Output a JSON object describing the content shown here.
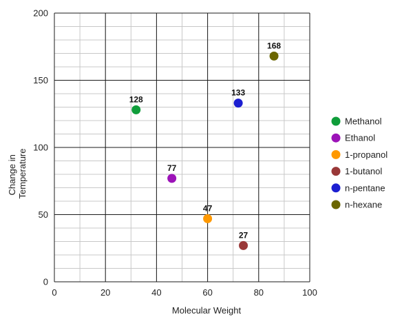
{
  "chart_data": {
    "type": "scatter",
    "title": "",
    "xlabel": "Molecular Weight",
    "ylabel": [
      "Change in",
      "Temperature"
    ],
    "xlim": [
      0,
      100
    ],
    "ylim": [
      0,
      200
    ],
    "x_ticks": [
      "0",
      "20",
      "40",
      "60",
      "80",
      "100"
    ],
    "y_ticks": [
      "0",
      "50",
      "100",
      "150",
      "200"
    ],
    "grid": true,
    "legend_position": "right",
    "series": [
      {
        "name": "Methanol",
        "color": "#0f9d3a",
        "x": 32,
        "y": 128,
        "label": "128"
      },
      {
        "name": "Ethanol",
        "color": "#9c13b8",
        "x": 46,
        "y": 77,
        "label": "77"
      },
      {
        "name": "1-propanol",
        "color": "#ff9900",
        "x": 60,
        "y": 47,
        "label": "47"
      },
      {
        "name": "1-butanol",
        "color": "#993838",
        "x": 74,
        "y": 27,
        "label": "27"
      },
      {
        "name": "n-pentane",
        "color": "#1c1fd1",
        "x": 72,
        "y": 133,
        "label": "133"
      },
      {
        "name": "n-hexane",
        "color": "#6b6600",
        "x": 86,
        "y": 168,
        "label": "168"
      }
    ]
  }
}
